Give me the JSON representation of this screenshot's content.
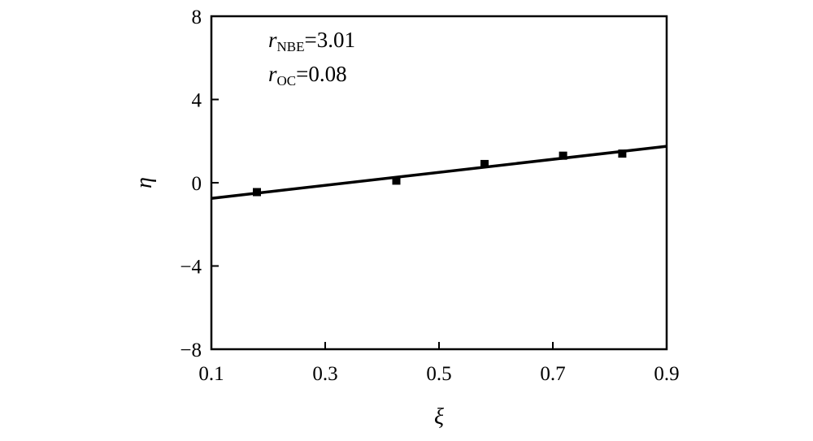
{
  "chart_data": {
    "type": "scatter",
    "xlabel": "ξ",
    "ylabel": "η",
    "xlim": [
      0.1,
      0.9
    ],
    "ylim": [
      -8,
      8
    ],
    "xticks": [
      "0.1",
      "0.3",
      "0.5",
      "0.7",
      "0.9"
    ],
    "yticks": [
      "−8",
      "−4",
      "0",
      "4",
      "8"
    ],
    "xtick_values": [
      0.1,
      0.3,
      0.5,
      0.7,
      0.9
    ],
    "ytick_values": [
      -8,
      -4,
      0,
      4,
      8
    ],
    "grid": false,
    "points": [
      {
        "x": 0.18,
        "y": -0.45
      },
      {
        "x": 0.425,
        "y": 0.1
      },
      {
        "x": 0.58,
        "y": 0.9
      },
      {
        "x": 0.718,
        "y": 1.3
      },
      {
        "x": 0.822,
        "y": 1.4
      }
    ],
    "fit_line": {
      "x": [
        0.1,
        0.9
      ],
      "y": [
        -0.75,
        1.75
      ]
    },
    "annotations": [
      {
        "var": "r",
        "sub": "NBE",
        "rest": "=3.01"
      },
      {
        "var": "r",
        "sub": "OC",
        "rest": "=0.08"
      }
    ]
  }
}
